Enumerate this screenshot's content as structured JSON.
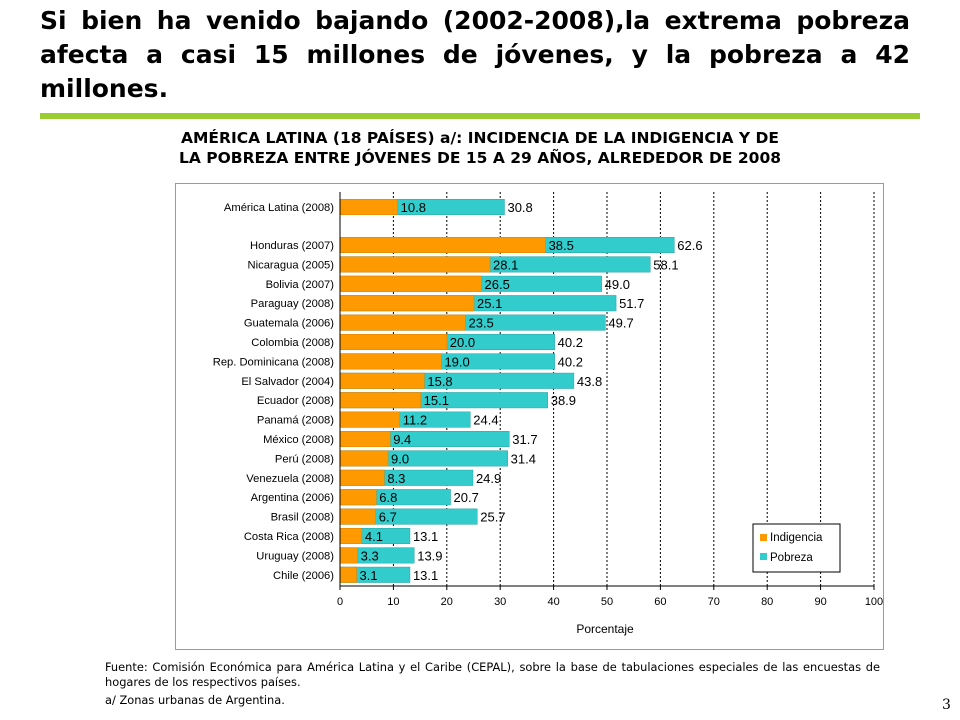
{
  "headline": "Si bien ha venido bajando (2002-2008),la extrema pobreza afecta a casi 15 millones de jóvenes, y la pobreza a 42 millones.",
  "chart_title_line1": "AMÉRICA LATINA (18 PAÍSES) a/: INCIDENCIA DE LA INDIGENCIA Y DE",
  "chart_title_line2": "LA POBREZA ENTRE JÓVENES DE 15 A 29 AÑOS, ALREDEDOR DE 2008",
  "source": "Fuente: Comisión Económica para América Latina y el Caribe (CEPAL), sobre la base de tabulaciones especiales de las encuestas de hogares de los respectivos países.",
  "footnote": "a/ Zonas urbanas de Argentina.",
  "page_number": "3",
  "colors": {
    "indigencia": "#ff9900",
    "pobreza": "#33cccc",
    "rule": "#9acd32"
  },
  "chart_data": {
    "type": "bar",
    "orientation": "horizontal",
    "title": "",
    "xlabel": "Porcentaje",
    "ylabel": "",
    "xlim": [
      0,
      100
    ],
    "xticks": [
      0,
      10,
      20,
      30,
      40,
      50,
      60,
      70,
      80,
      90,
      100
    ],
    "grid": "vertical dashed",
    "legend_position": "bottom-right",
    "categories": [
      "América Latina (2008)",
      "Honduras (2007)",
      "Nicaragua (2005)",
      "Bolivia (2007)",
      "Paraguay (2008)",
      "Guatemala (2006)",
      "Colombia (2008)",
      "Rep. Dominicana (2008)",
      "El Salvador (2004)",
      "Ecuador (2008)",
      "Panamá (2008)",
      "México (2008)",
      "Perú (2008)",
      "Venezuela (2008)",
      "Argentina (2006)",
      "Brasil (2008)",
      "Costa Rica (2008)",
      "Uruguay (2008)",
      "Chile (2006)"
    ],
    "series": [
      {
        "name": "Indigencia",
        "values": [
          10.8,
          38.5,
          28.1,
          26.5,
          25.1,
          23.5,
          20.0,
          19.0,
          15.8,
          15.1,
          11.2,
          9.4,
          9.0,
          8.3,
          6.8,
          6.7,
          4.1,
          3.3,
          3.1
        ]
      },
      {
        "name": "Pobreza",
        "values": [
          30.8,
          62.6,
          58.1,
          49.0,
          51.7,
          49.7,
          40.2,
          40.2,
          43.8,
          38.9,
          24.4,
          31.7,
          31.4,
          24.9,
          20.7,
          25.7,
          13.1,
          13.9,
          13.1
        ]
      }
    ]
  }
}
